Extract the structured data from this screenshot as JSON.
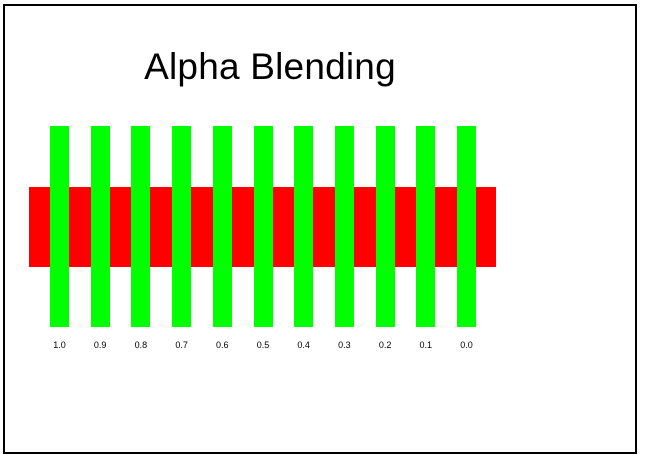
{
  "title": "Alpha Blending",
  "colors": {
    "background_band": "#ff0000",
    "bars": "#00ff00",
    "frame": "#000000"
  },
  "bars": [
    {
      "label": "1.0"
    },
    {
      "label": "0.9"
    },
    {
      "label": "0.8"
    },
    {
      "label": "0.7"
    },
    {
      "label": "0.6"
    },
    {
      "label": "0.5"
    },
    {
      "label": "0.4"
    },
    {
      "label": "0.3"
    },
    {
      "label": "0.2"
    },
    {
      "label": "0.1"
    },
    {
      "label": "0.0"
    }
  ]
}
